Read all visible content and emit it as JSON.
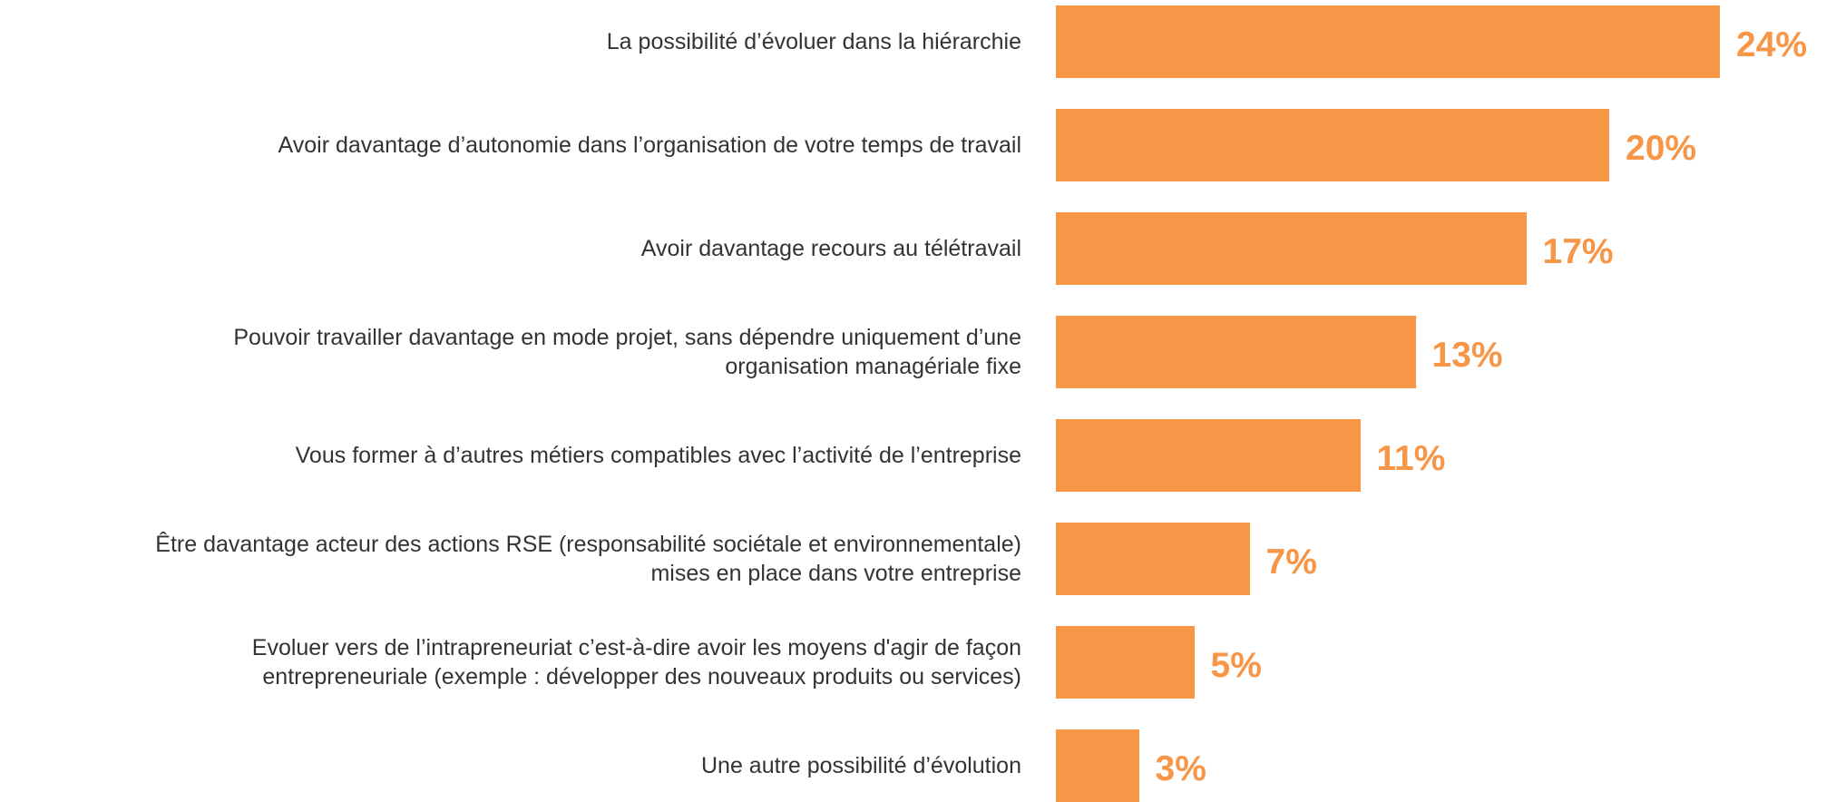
{
  "chart_data": {
    "type": "barh",
    "categories": [
      "La possibilité d’évoluer dans la hiérarchie",
      "Avoir davantage d’autonomie dans l’organisation de votre temps de travail",
      "Avoir davantage recours au télétravail",
      "Pouvoir travailler davantage en mode projet, sans dépendre uniquement d’une\norganisation managériale fixe",
      "Vous former à d’autres métiers compatibles avec l’activité de l’entreprise",
      "Être davantage acteur des actions RSE (responsabilité sociétale et environnementale)\nmises en place dans votre entreprise",
      "Evoluer vers de l’intrapreneuriat c’est-à-dire avoir les moyens d'agir de façon\nentrepreneuriale (exemple : développer des nouveaux produits ou services)",
      "Une autre possibilité d’évolution"
    ],
    "values": [
      24,
      20,
      17,
      13,
      11,
      7,
      5,
      3
    ],
    "value_labels": [
      "24%",
      "20%",
      "17%",
      "13%",
      "11%",
      "7%",
      "5%",
      "3%"
    ],
    "color": "#f79646"
  }
}
